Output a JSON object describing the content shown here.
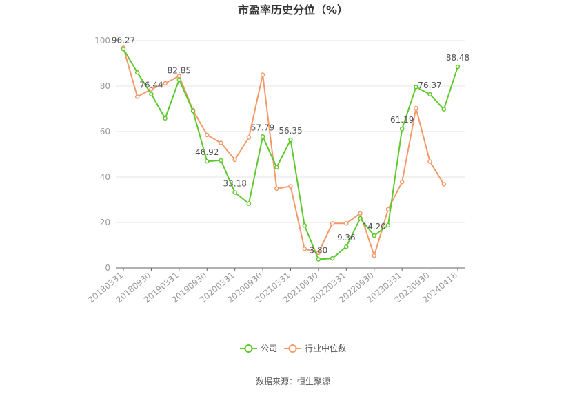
{
  "colors": {
    "company": "#5fc82e",
    "industry": "#f39a6b",
    "grid": "#e6e6e6",
    "axis": "#666666"
  },
  "chart_data": {
    "type": "line",
    "title": "市盈率历史分位（%）",
    "ylim": [
      0,
      100
    ],
    "yticks": [
      "0",
      "20",
      "40",
      "60",
      "80",
      "100"
    ],
    "x": [
      "20180331",
      "20180630",
      "20180930",
      "20181231",
      "20190331",
      "20190630",
      "20190930",
      "20191231",
      "20200331",
      "20200630",
      "20200930",
      "20201231",
      "20210331",
      "20210630",
      "20210930",
      "20211231",
      "20220331",
      "20220630",
      "20220930",
      "20221231",
      "20230331",
      "20230630",
      "20230930",
      "20231231",
      "20240418"
    ],
    "xtick_labels": [
      "20180331",
      "20180930",
      "20190331",
      "20190930",
      "20200331",
      "20200930",
      "20210331",
      "20210930",
      "20220331",
      "20220930",
      "20230331",
      "20230930",
      "20240418"
    ],
    "series": [
      {
        "name": "公司",
        "values": [
          96.27,
          86.0,
          76.44,
          65.8,
          82.85,
          69.0,
          46.92,
          47.3,
          33.18,
          28.3,
          57.79,
          44.3,
          56.35,
          18.7,
          3.8,
          4.2,
          9.36,
          21.8,
          14.2,
          18.8,
          61.19,
          79.6,
          76.37,
          69.8,
          88.48
        ]
      },
      {
        "name": "行业中位数",
        "values": [
          96.8,
          75.3,
          78.6,
          81.2,
          84.4,
          69.4,
          58.5,
          55.0,
          47.6,
          57.4,
          85.0,
          34.9,
          35.9,
          8.4,
          6.7,
          19.6,
          19.6,
          24.0,
          5.4,
          25.8,
          37.8,
          70.3,
          46.8,
          36.8,
          null
        ]
      }
    ],
    "data_labels": [
      {
        "index": 0,
        "text": "96.27"
      },
      {
        "index": 2,
        "text": "76.44"
      },
      {
        "index": 4,
        "text": "82.85"
      },
      {
        "index": 6,
        "text": "46.92"
      },
      {
        "index": 8,
        "text": "33.18"
      },
      {
        "index": 10,
        "text": "57.79"
      },
      {
        "index": 12,
        "text": "56.35"
      },
      {
        "index": 14,
        "text": "3.80"
      },
      {
        "index": 16,
        "text": "9.36"
      },
      {
        "index": 18,
        "text": "14.20"
      },
      {
        "index": 20,
        "text": "61.19"
      },
      {
        "index": 22,
        "text": "76.37"
      },
      {
        "index": 24,
        "text": "88.48"
      }
    ],
    "legend": {
      "position": "bottom"
    },
    "grid": true
  },
  "source": "数据来源：恒生聚源"
}
